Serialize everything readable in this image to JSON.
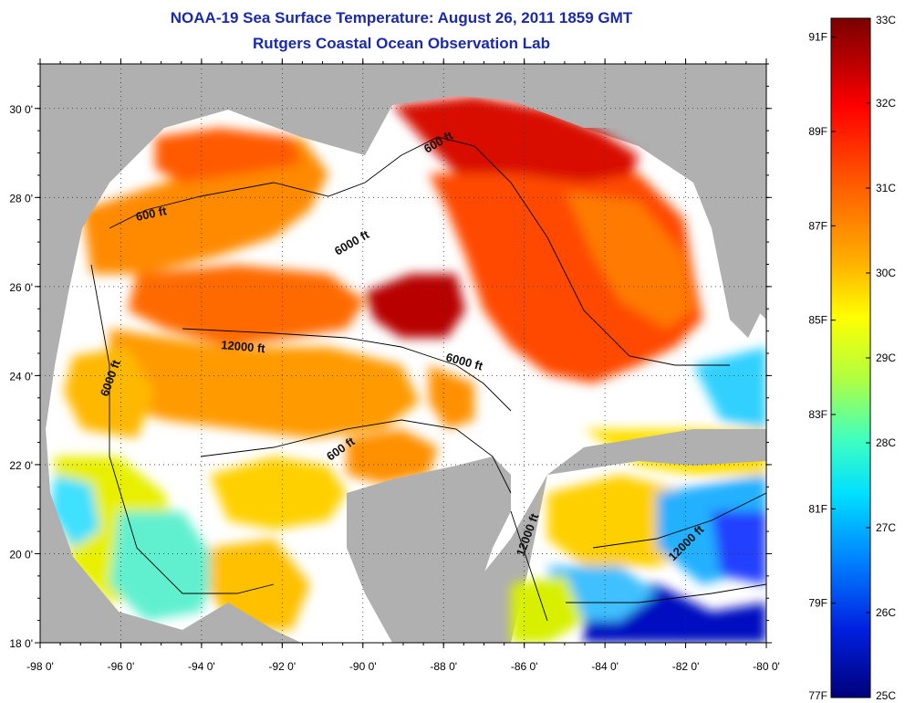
{
  "title": {
    "line1": "NOAA-19 Sea Surface Temperature:  August 26, 2011 1859 GMT",
    "line2": "Rutgers Coastal Ocean Observation Lab"
  },
  "map": {
    "lon_ticks": [
      "-98 0'",
      "-96 0'",
      "-94 0'",
      "-92 0'",
      "-90 0'",
      "-88 0'",
      "-86 0'",
      "-84 0'",
      "-82 0'",
      "-80 0'"
    ],
    "lat_ticks": [
      "30 0'",
      "28 0'",
      "26 0'",
      "24 0'",
      "22 0'",
      "20 0'",
      "18 0'"
    ],
    "lon_range": [
      -98,
      -80
    ],
    "lat_range": [
      18,
      31
    ],
    "contour_labels": [
      "600 ft",
      "600 ft",
      "6000 ft",
      "12000 ft",
      "6000 ft",
      "6000 ft",
      "600 ft",
      "12000 ft",
      "12000 ft"
    ],
    "colors": {
      "land": "#b0b0b0",
      "cloud": "#ffffff"
    }
  },
  "colorbar": {
    "celsius_labels": [
      "33C",
      "32C",
      "31C",
      "30C",
      "29C",
      "28C",
      "27C",
      "26C",
      "25C"
    ],
    "fahrenheit_labels": [
      "91F",
      "89F",
      "87F",
      "85F",
      "83F",
      "81F",
      "79F",
      "77F"
    ],
    "range_c": [
      25,
      33
    ],
    "gradient": [
      "#7a0000",
      "#c80000",
      "#ff3000",
      "#ff8000",
      "#ffc000",
      "#ffff00",
      "#a0ff50",
      "#30ffd0",
      "#00c0ff",
      "#0060ff",
      "#0000d0",
      "#00007a"
    ]
  }
}
